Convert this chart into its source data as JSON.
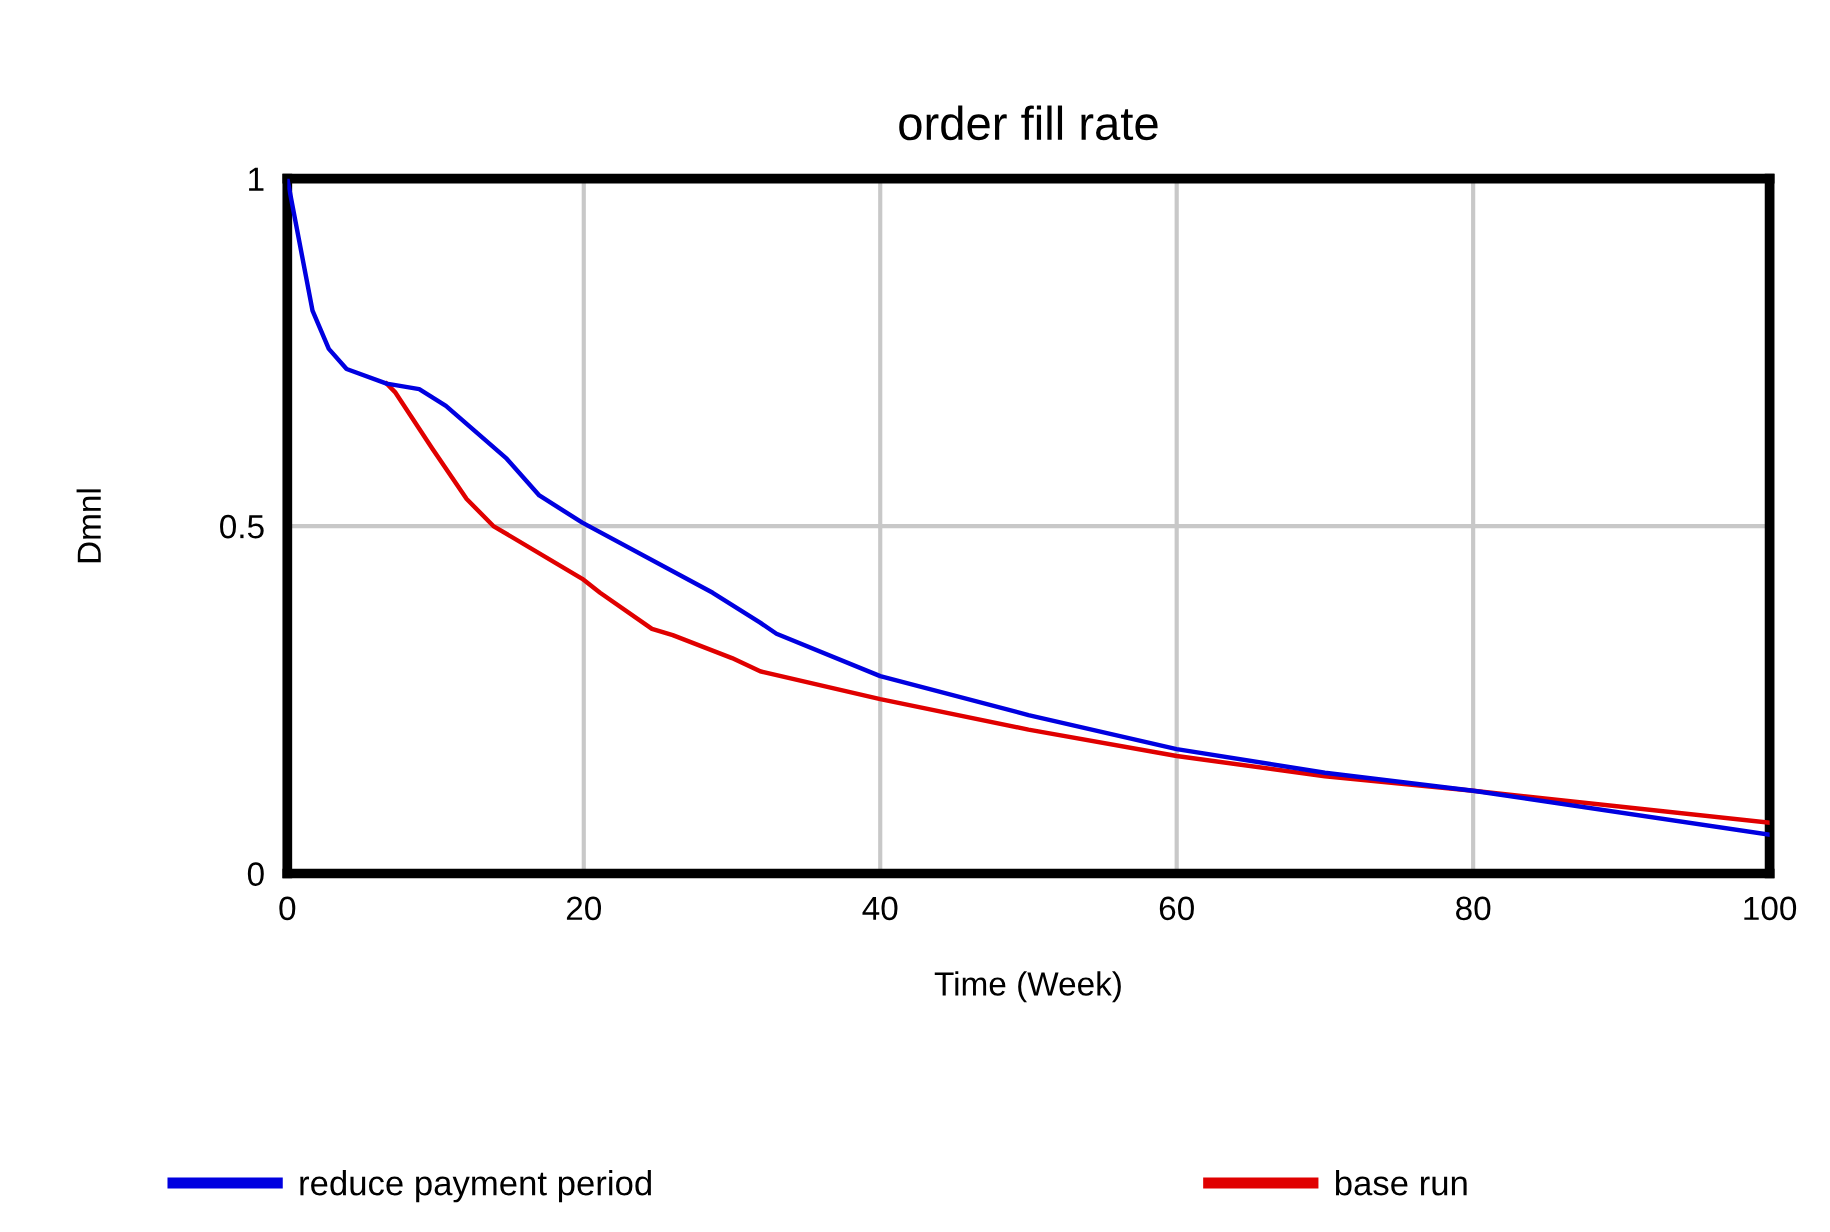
{
  "chart_data": {
    "type": "line",
    "title": "order fill rate",
    "xlabel": "Time (Week)",
    "ylabel": "Dmnl",
    "xlim": [
      0,
      100
    ],
    "ylim": [
      0,
      1
    ],
    "xticks": [
      0,
      20,
      40,
      60,
      80,
      100
    ],
    "yticks": [
      0,
      0.5,
      1
    ],
    "grid": true,
    "legend": "bottom",
    "line_style": "solid",
    "series": [
      {
        "name": "reduce payment period",
        "color": "#0000e0",
        "x": [
          0,
          1.7,
          2.8,
          4,
          6.7,
          8.9,
          10.7,
          14.8,
          17,
          19.9,
          28.7,
          31.9,
          33,
          40,
          50,
          60,
          70,
          80,
          100
        ],
        "values": [
          1,
          0.81,
          0.755,
          0.726,
          0.705,
          0.697,
          0.673,
          0.597,
          0.544,
          0.505,
          0.404,
          0.361,
          0.345,
          0.284,
          0.228,
          0.179,
          0.145,
          0.119,
          0.056
        ]
      },
      {
        "name": "base run",
        "color": "#e00000",
        "x": [
          6.7,
          7.3,
          9.8,
          12.1,
          13.9,
          19.9,
          21.1,
          24.6,
          26,
          30,
          31.9,
          40,
          50,
          60,
          70,
          80,
          100
        ],
        "values": [
          0.705,
          0.692,
          0.611,
          0.539,
          0.5,
          0.424,
          0.404,
          0.352,
          0.343,
          0.31,
          0.291,
          0.251,
          0.207,
          0.169,
          0.14,
          0.119,
          0.073
        ]
      }
    ]
  }
}
